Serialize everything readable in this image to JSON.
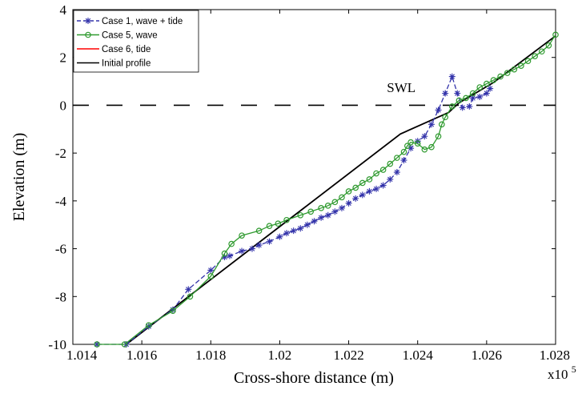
{
  "chart_data": {
    "type": "line",
    "xlabel": "Cross-shore distance (m)",
    "ylabel": "Elevation (m)",
    "xlim": [
      1.014,
      1.028
    ],
    "ylim": [
      -10,
      4
    ],
    "x_ticks": [
      1.014,
      1.016,
      1.018,
      1.02,
      1.022,
      1.024,
      1.026,
      1.028
    ],
    "x_tick_labels": [
      "1.014",
      "1.016",
      "1.018",
      "1.02",
      "1.022",
      "1.024",
      "1.026",
      "1.028"
    ],
    "y_ticks": [
      -10,
      -8,
      -6,
      -4,
      -2,
      0,
      2,
      4
    ],
    "y_tick_labels": [
      "-10",
      "-8",
      "-6",
      "-4",
      "-2",
      "0",
      "2",
      "4"
    ],
    "x_multiplier_base": "x10",
    "x_multiplier_exp": "5",
    "grid": false,
    "legend_position": "top-left",
    "annotations": [
      {
        "text": "SWL",
        "x": 1.0245,
        "y": 0.35
      }
    ],
    "reference_lines": [
      {
        "name": "SWL",
        "y": 0,
        "style": "dashed",
        "color": "#000000"
      }
    ],
    "series": [
      {
        "name": "Case 1, wave + tide",
        "color": "#3333aa",
        "dash": "dashed",
        "marker": "star",
        "points": [
          [
            1.0147,
            -10.0
          ],
          [
            1.01555,
            -10.0
          ],
          [
            1.0162,
            -9.25
          ],
          [
            1.0169,
            -8.55
          ],
          [
            1.01735,
            -7.7
          ],
          [
            1.018,
            -6.9
          ],
          [
            1.0184,
            -6.35
          ],
          [
            1.01855,
            -6.3
          ],
          [
            1.0189,
            -6.1
          ],
          [
            1.0192,
            -6.0
          ],
          [
            1.0194,
            -5.85
          ],
          [
            1.0197,
            -5.7
          ],
          [
            1.02,
            -5.5
          ],
          [
            1.0202,
            -5.35
          ],
          [
            1.0204,
            -5.25
          ],
          [
            1.0206,
            -5.15
          ],
          [
            1.0208,
            -5.0
          ],
          [
            1.021,
            -4.85
          ],
          [
            1.0212,
            -4.7
          ],
          [
            1.0214,
            -4.6
          ],
          [
            1.0216,
            -4.45
          ],
          [
            1.0218,
            -4.3
          ],
          [
            1.022,
            -4.1
          ],
          [
            1.0222,
            -3.9
          ],
          [
            1.0224,
            -3.75
          ],
          [
            1.0226,
            -3.6
          ],
          [
            1.0228,
            -3.5
          ],
          [
            1.023,
            -3.35
          ],
          [
            1.0232,
            -3.1
          ],
          [
            1.0234,
            -2.8
          ],
          [
            1.0236,
            -2.3
          ],
          [
            1.0238,
            -1.8
          ],
          [
            1.024,
            -1.5
          ],
          [
            1.0242,
            -1.3
          ],
          [
            1.0244,
            -0.8
          ],
          [
            1.0246,
            -0.2
          ],
          [
            1.0248,
            0.5
          ],
          [
            1.025,
            1.2
          ],
          [
            1.02515,
            0.5
          ],
          [
            1.0253,
            -0.1
          ],
          [
            1.0255,
            -0.05
          ],
          [
            1.0256,
            0.3
          ],
          [
            1.0258,
            0.35
          ],
          [
            1.026,
            0.5
          ],
          [
            1.0261,
            0.7
          ]
        ]
      },
      {
        "name": "Case 5, wave",
        "color": "#2f9a2f",
        "dash": "solid",
        "marker": "circle",
        "points": [
          [
            1.0147,
            -10.0
          ],
          [
            1.0155,
            -10.0
          ],
          [
            1.0162,
            -9.2
          ],
          [
            1.0169,
            -8.6
          ],
          [
            1.0174,
            -8.0
          ],
          [
            1.018,
            -7.15
          ],
          [
            1.0184,
            -6.2
          ],
          [
            1.0186,
            -5.8
          ],
          [
            1.0189,
            -5.45
          ],
          [
            1.0194,
            -5.25
          ],
          [
            1.0197,
            -5.05
          ],
          [
            1.01995,
            -4.95
          ],
          [
            1.0202,
            -4.8
          ],
          [
            1.0206,
            -4.6
          ],
          [
            1.0209,
            -4.45
          ],
          [
            1.0212,
            -4.3
          ],
          [
            1.0214,
            -4.2
          ],
          [
            1.0216,
            -4.05
          ],
          [
            1.0218,
            -3.85
          ],
          [
            1.022,
            -3.6
          ],
          [
            1.0222,
            -3.45
          ],
          [
            1.0224,
            -3.25
          ],
          [
            1.0226,
            -3.1
          ],
          [
            1.0228,
            -2.85
          ],
          [
            1.023,
            -2.7
          ],
          [
            1.0232,
            -2.45
          ],
          [
            1.0234,
            -2.2
          ],
          [
            1.0236,
            -1.95
          ],
          [
            1.0237,
            -1.7
          ],
          [
            1.0238,
            -1.55
          ],
          [
            1.024,
            -1.6
          ],
          [
            1.0242,
            -1.85
          ],
          [
            1.0244,
            -1.75
          ],
          [
            1.0246,
            -1.3
          ],
          [
            1.0247,
            -0.8
          ],
          [
            1.0248,
            -0.5
          ],
          [
            1.025,
            -0.05
          ],
          [
            1.0252,
            0.2
          ],
          [
            1.0254,
            0.3
          ],
          [
            1.0256,
            0.5
          ],
          [
            1.0258,
            0.75
          ],
          [
            1.026,
            0.9
          ],
          [
            1.0262,
            1.05
          ],
          [
            1.0264,
            1.2
          ],
          [
            1.0266,
            1.35
          ],
          [
            1.0268,
            1.5
          ],
          [
            1.027,
            1.65
          ],
          [
            1.0272,
            1.85
          ],
          [
            1.0274,
            2.05
          ],
          [
            1.0276,
            2.25
          ],
          [
            1.0278,
            2.5
          ],
          [
            1.028,
            2.95
          ]
        ]
      },
      {
        "name": "Case 6, tide",
        "color": "#ff0000",
        "dash": "solid",
        "marker": "none",
        "points": [
          [
            1.01555,
            -10.0
          ],
          [
            1.0235,
            -1.2
          ],
          [
            1.0249,
            -0.3
          ],
          [
            1.0252,
            0.1
          ],
          [
            1.0262,
            0.95
          ],
          [
            1.028,
            2.9
          ]
        ]
      },
      {
        "name": "Initial profile",
        "color": "#000000",
        "dash": "solid",
        "marker": "none",
        "points": [
          [
            1.01555,
            -10.0
          ],
          [
            1.0235,
            -1.2
          ],
          [
            1.0249,
            -0.3
          ],
          [
            1.0252,
            0.1
          ],
          [
            1.0262,
            0.95
          ],
          [
            1.028,
            2.9
          ]
        ]
      }
    ]
  }
}
